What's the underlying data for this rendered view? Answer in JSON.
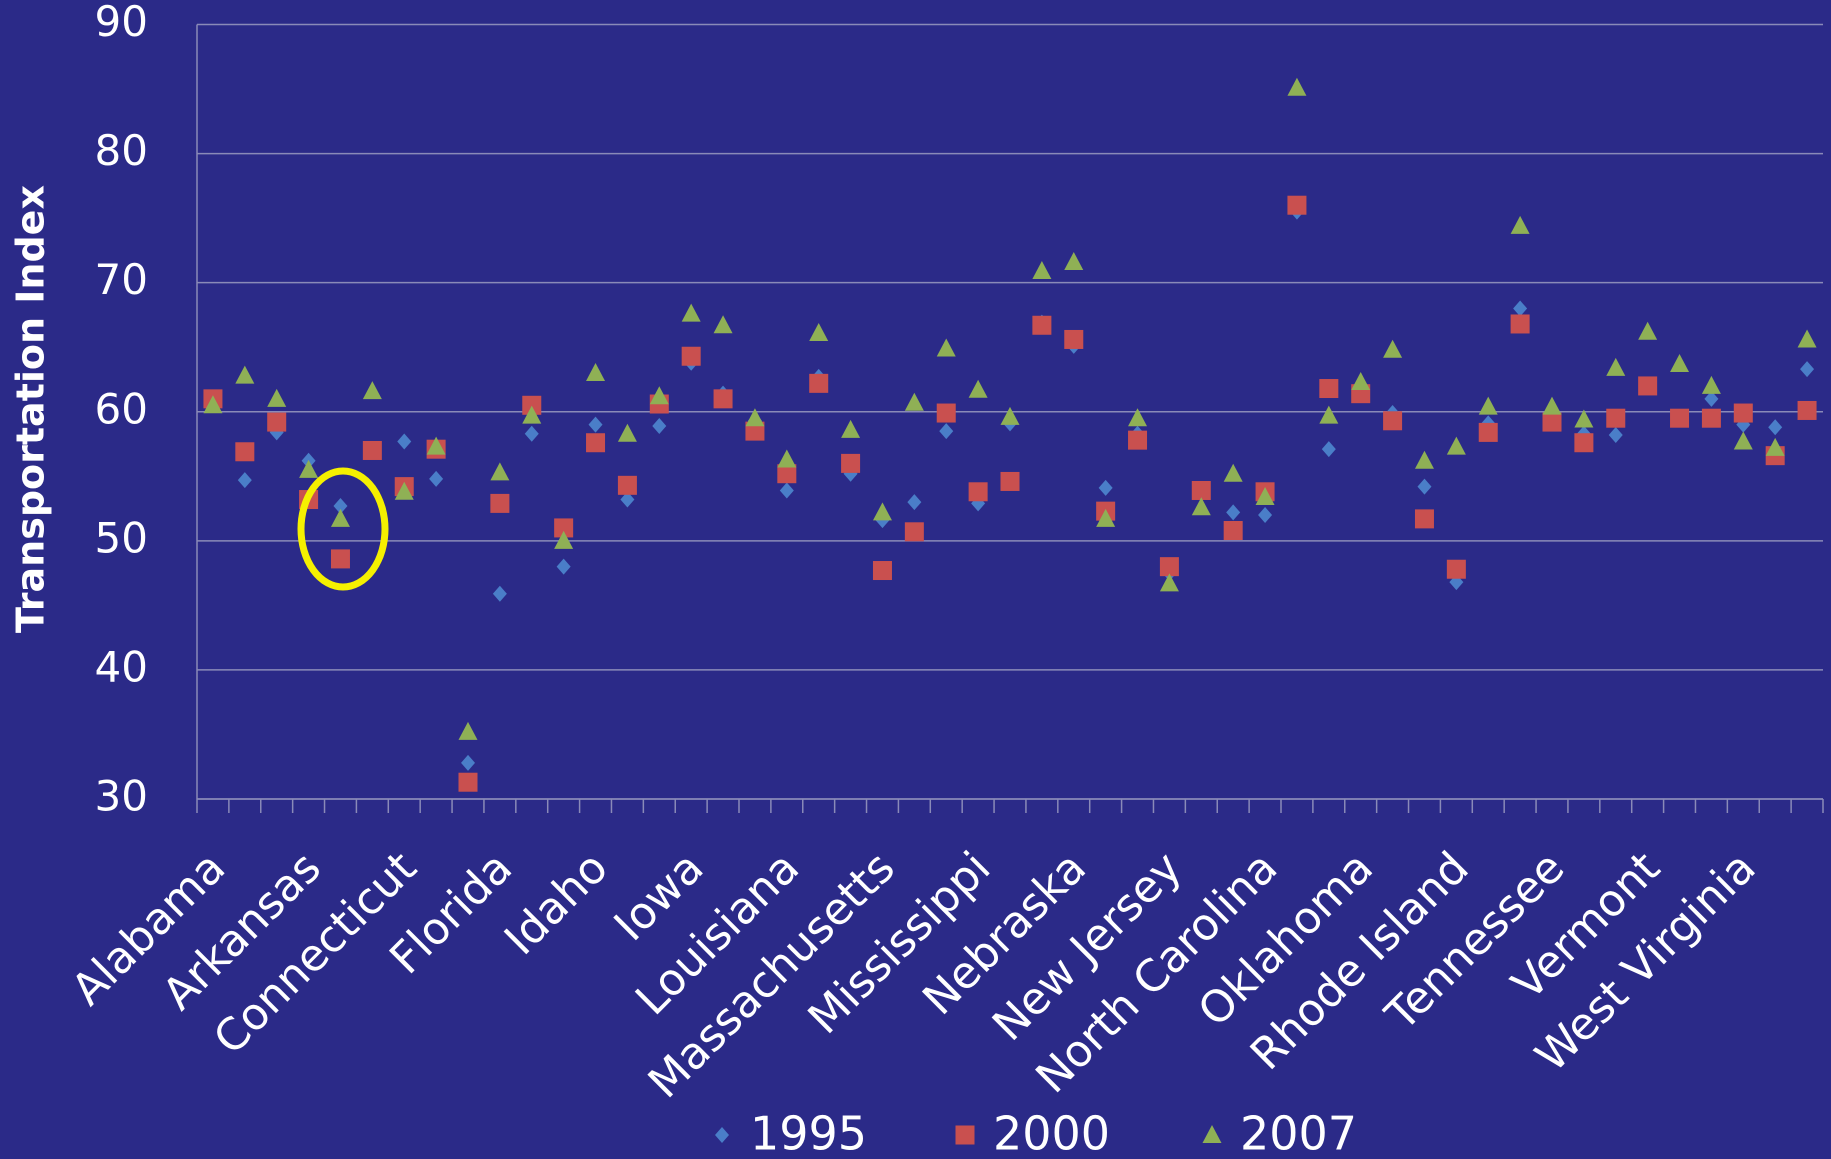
{
  "chart_data": {
    "type": "scatter",
    "y_label": "Transportation Index",
    "categories": [
      "Alabama",
      null,
      null,
      "Arkansas",
      null,
      null,
      "Connecticut",
      null,
      null,
      "Florida",
      null,
      null,
      "Idaho",
      null,
      null,
      "Iowa",
      null,
      null,
      "Louisiana",
      null,
      null,
      "Massachusetts",
      null,
      null,
      "Mississippi",
      null,
      null,
      "Nebraska",
      null,
      null,
      "New Jersey",
      null,
      null,
      "North Carolina",
      null,
      null,
      "Oklahoma",
      null,
      null,
      "Rhode Island",
      null,
      null,
      "Tennessee",
      null,
      null,
      "Vermont",
      null,
      null,
      "West Virginia",
      null,
      null
    ],
    "series": [
      {
        "name": "1995",
        "color": "#4a7ec8",
        "marker": "diamond",
        "values": [
          61.0,
          54.7,
          58.4,
          56.2,
          52.7,
          57.0,
          57.7,
          54.8,
          32.8,
          45.9,
          58.3,
          48.0,
          59.0,
          53.2,
          58.9,
          63.8,
          61.4,
          59.3,
          53.9,
          62.7,
          55.2,
          51.6,
          53.0,
          58.5,
          52.9,
          59.1,
          66.9,
          65.1,
          54.1,
          58.3,
          47.5,
          53.9,
          52.2,
          52.0,
          75.5,
          57.1,
          61.3,
          59.9,
          54.2,
          46.8,
          59.1,
          68.0,
          60.1,
          58.3,
          58.2,
          62.0,
          59.6,
          61.0,
          59.0,
          58.8,
          63.3
        ]
      },
      {
        "name": "2000",
        "color": "#c9504f",
        "marker": "square",
        "values": [
          61.0,
          56.9,
          59.2,
          53.2,
          48.6,
          57.0,
          54.2,
          57.1,
          31.3,
          52.9,
          60.5,
          51.0,
          57.6,
          54.3,
          60.6,
          64.3,
          61.0,
          58.5,
          55.2,
          62.2,
          56.0,
          47.7,
          50.7,
          59.9,
          53.8,
          54.6,
          66.7,
          65.6,
          52.3,
          57.8,
          48.0,
          53.9,
          50.8,
          53.8,
          76.0,
          61.8,
          61.4,
          59.3,
          51.7,
          47.8,
          58.4,
          66.8,
          59.2,
          57.6,
          59.5,
          62.0,
          59.5,
          59.5,
          59.9,
          56.6,
          60.1
        ]
      },
      {
        "name": "2007",
        "color": "#8fb055",
        "marker": "triangle",
        "values": [
          60.5,
          62.8,
          61.0,
          55.5,
          51.7,
          61.6,
          53.8,
          57.3,
          35.2,
          55.3,
          59.7,
          50.0,
          63.0,
          58.3,
          61.2,
          67.6,
          66.7,
          59.5,
          56.3,
          66.1,
          58.6,
          52.2,
          60.7,
          64.9,
          61.7,
          59.6,
          70.9,
          71.6,
          51.7,
          59.5,
          46.7,
          52.6,
          55.2,
          53.4,
          85.1,
          59.7,
          62.3,
          64.8,
          56.2,
          57.3,
          60.4,
          74.4,
          60.4,
          59.4,
          63.4,
          66.2,
          63.7,
          62.0,
          57.7,
          57.2,
          65.6
        ]
      }
    ],
    "ylim": [
      30,
      90
    ],
    "yticks": [
      30,
      40,
      50,
      60,
      70,
      80,
      90
    ],
    "grid": true,
    "legend": "bottom"
  }
}
